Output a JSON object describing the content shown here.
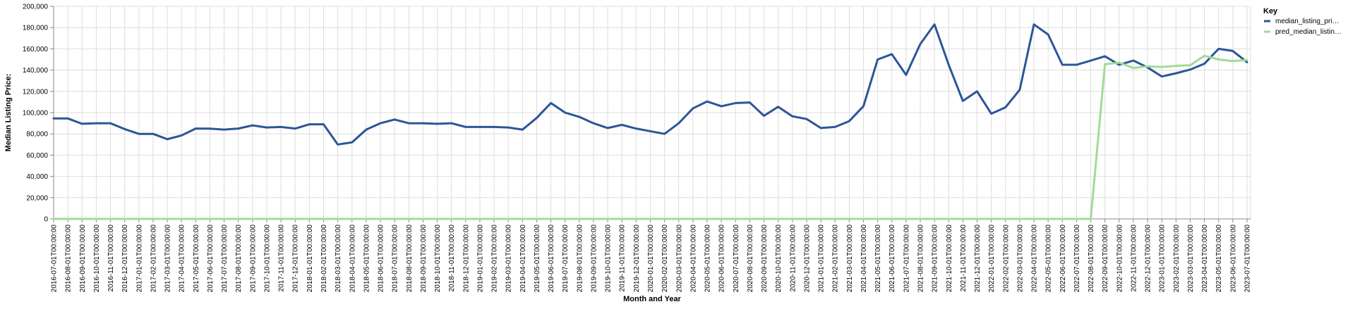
{
  "chart_data": {
    "type": "line",
    "xlabel": "Month and Year",
    "ylabel": "Median Listing Price:",
    "ylim": [
      0,
      200000
    ],
    "y_ticks": [
      "0",
      "20,000",
      "40,000",
      "60,000",
      "80,000",
      "100,000",
      "120,000",
      "140,000",
      "160,000",
      "180,000",
      "200,000"
    ],
    "y_tick_values": [
      0,
      20000,
      40000,
      60000,
      80000,
      100000,
      120000,
      140000,
      160000,
      180000,
      200000
    ],
    "grid": true,
    "legend_title": "Key",
    "legend_position": "right",
    "x": [
      "2016-07-01T00:00:00",
      "2016-08-01T00:00:00",
      "2016-09-01T00:00:00",
      "2016-10-01T00:00:00",
      "2016-11-01T00:00:00",
      "2016-12-01T00:00:00",
      "2017-01-01T00:00:00",
      "2017-02-01T00:00:00",
      "2017-03-01T00:00:00",
      "2017-04-01T00:00:00",
      "2017-05-01T00:00:00",
      "2017-06-01T00:00:00",
      "2017-07-01T00:00:00",
      "2017-08-01T00:00:00",
      "2017-09-01T00:00:00",
      "2017-10-01T00:00:00",
      "2017-11-01T00:00:00",
      "2017-12-01T00:00:00",
      "2018-01-01T00:00:00",
      "2018-02-01T00:00:00",
      "2018-03-01T00:00:00",
      "2018-04-01T00:00:00",
      "2018-05-01T00:00:00",
      "2018-06-01T00:00:00",
      "2018-07-01T00:00:00",
      "2018-08-01T00:00:00",
      "2018-09-01T00:00:00",
      "2018-10-01T00:00:00",
      "2018-11-01T00:00:00",
      "2018-12-01T00:00:00",
      "2019-01-01T00:00:00",
      "2019-02-01T00:00:00",
      "2019-03-01T00:00:00",
      "2019-04-01T00:00:00",
      "2019-05-01T00:00:00",
      "2019-06-01T00:00:00",
      "2019-07-01T00:00:00",
      "2019-08-01T00:00:00",
      "2019-09-01T00:00:00",
      "2019-10-01T00:00:00",
      "2019-11-01T00:00:00",
      "2019-12-01T00:00:00",
      "2020-01-01T00:00:00",
      "2020-02-01T00:00:00",
      "2020-03-01T00:00:00",
      "2020-04-01T00:00:00",
      "2020-05-01T00:00:00",
      "2020-06-01T00:00:00",
      "2020-07-01T00:00:00",
      "2020-08-01T00:00:00",
      "2020-09-01T00:00:00",
      "2020-10-01T00:00:00",
      "2020-11-01T00:00:00",
      "2020-12-01T00:00:00",
      "2021-01-01T00:00:00",
      "2021-02-01T00:00:00",
      "2021-03-01T00:00:00",
      "2021-04-01T00:00:00",
      "2021-05-01T00:00:00",
      "2021-06-01T00:00:00",
      "2021-07-01T00:00:00",
      "2021-08-01T00:00:00",
      "2021-09-01T00:00:00",
      "2021-10-01T00:00:00",
      "2021-11-01T00:00:00",
      "2021-12-01T00:00:00",
      "2022-01-01T00:00:00",
      "2022-02-01T00:00:00",
      "2022-03-01T00:00:00",
      "2022-04-01T00:00:00",
      "2022-05-01T00:00:00",
      "2022-06-01T00:00:00",
      "2022-07-01T00:00:00",
      "2022-08-01T00:00:00",
      "2022-09-01T00:00:00",
      "2022-10-01T00:00:00",
      "2022-11-01T00:00:00",
      "2022-12-01T00:00:00",
      "2023-01-01T00:00:00",
      "2023-02-01T00:00:00",
      "2023-03-01T00:00:00",
      "2023-04-01T00:00:00",
      "2023-05-01T00:00:00",
      "2023-06-01T00:00:00",
      "2023-07-01T00:00:00"
    ],
    "series": [
      {
        "name": "median_listing_pri…",
        "color": "#2c5697",
        "values": [
          94500,
          94500,
          89500,
          90000,
          90000,
          84500,
          80000,
          80000,
          75000,
          78500,
          85000,
          84900,
          84000,
          85000,
          88000,
          86000,
          86500,
          85000,
          89000,
          89000,
          70000,
          72000,
          84000,
          90000,
          93500,
          90000,
          90000,
          89500,
          90000,
          86500,
          86500,
          86500,
          86000,
          84000,
          95000,
          109000,
          100000,
          96000,
          90000,
          85500,
          88500,
          85000,
          82500,
          80000,
          90000,
          104000,
          110500,
          106000,
          109000,
          109500,
          97000,
          105500,
          96500,
          94000,
          85500,
          86500,
          92000,
          106000,
          150000,
          155000,
          135500,
          164500,
          183000,
          145000,
          111000,
          120000,
          99000,
          105000,
          121500,
          183000,
          173500,
          145000,
          145000,
          149000,
          153000,
          145000,
          149000,
          142500,
          134000,
          137000,
          140500,
          146000,
          160000,
          158000,
          147500
        ]
      },
      {
        "name": "pred_median_listin…",
        "color": "#a3d99a",
        "values": [
          0,
          0,
          0,
          0,
          0,
          0,
          0,
          0,
          0,
          0,
          0,
          0,
          0,
          0,
          0,
          0,
          0,
          0,
          0,
          0,
          0,
          0,
          0,
          0,
          0,
          0,
          0,
          0,
          0,
          0,
          0,
          0,
          0,
          0,
          0,
          0,
          0,
          0,
          0,
          0,
          0,
          0,
          0,
          0,
          0,
          0,
          0,
          0,
          0,
          0,
          0,
          0,
          0,
          0,
          0,
          0,
          0,
          0,
          0,
          0,
          0,
          0,
          0,
          0,
          0,
          0,
          0,
          0,
          0,
          0,
          0,
          0,
          0,
          0,
          145500,
          147000,
          142000,
          143500,
          143000,
          144000,
          144500,
          153500,
          150000,
          148500,
          149500
        ]
      }
    ]
  }
}
